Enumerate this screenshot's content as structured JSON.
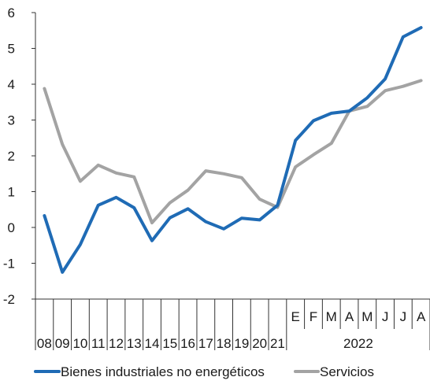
{
  "chart_data": {
    "type": "line",
    "title": "",
    "xlabel": "",
    "ylabel": "",
    "ylim": [
      -2,
      6
    ],
    "yticks": [
      "6",
      "5",
      "4",
      "3",
      "2",
      "1",
      "0",
      "-1",
      "-2"
    ],
    "ytick_values": [
      6,
      5,
      4,
      3,
      2,
      1,
      0,
      -1,
      -2
    ],
    "categories": [
      "08",
      "09",
      "10",
      "11",
      "12",
      "13",
      "14",
      "15",
      "16",
      "17",
      "18",
      "19",
      "20",
      "21",
      "E",
      "F",
      "M",
      "A",
      "M",
      "J",
      "J",
      "A"
    ],
    "year_group_label": "2022",
    "series": [
      {
        "name": "Bienes industriales no energéticos",
        "color": "#1f6bb5",
        "values": [
          0.33,
          -1.25,
          -0.48,
          0.62,
          0.84,
          0.55,
          -0.37,
          0.27,
          0.52,
          0.16,
          -0.04,
          0.26,
          0.21,
          0.62,
          2.43,
          2.98,
          3.19,
          3.25,
          3.62,
          4.15,
          5.32,
          5.58
        ]
      },
      {
        "name": "Servicios",
        "color": "#a3a3a3",
        "values": [
          3.88,
          2.32,
          1.29,
          1.74,
          1.52,
          1.41,
          0.13,
          0.69,
          1.04,
          1.58,
          1.5,
          1.39,
          0.79,
          0.56,
          1.69,
          2.03,
          2.35,
          3.25,
          3.38,
          3.82,
          3.94,
          4.1
        ]
      }
    ],
    "legend_position": "bottom",
    "grid": false
  }
}
